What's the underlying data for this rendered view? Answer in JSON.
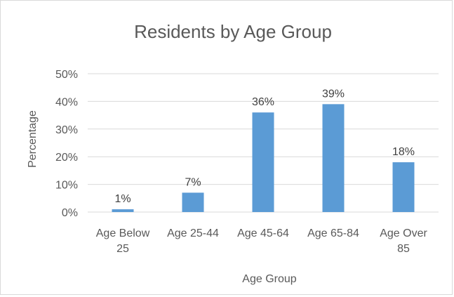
{
  "chart_data": {
    "type": "bar",
    "title": "Residents by Age Group",
    "xlabel": "Age Group",
    "ylabel": "Percentage",
    "categories": [
      [
        "Age Below",
        "25"
      ],
      [
        "Age 25-44"
      ],
      [
        "Age 45-64"
      ],
      [
        "Age 65-84"
      ],
      [
        "Age Over",
        "85"
      ]
    ],
    "values": [
      1,
      7,
      36,
      39,
      18
    ],
    "data_labels": [
      "1%",
      "7%",
      "36%",
      "39%",
      "18%"
    ],
    "ylim": [
      0,
      50
    ],
    "yticks": [
      "0%",
      "10%",
      "20%",
      "30%",
      "40%",
      "50%"
    ],
    "grid": true,
    "legend": "none",
    "colors": {
      "bar": "#5b9bd5",
      "grid": "#d9d9d9",
      "text": "#595959"
    }
  }
}
